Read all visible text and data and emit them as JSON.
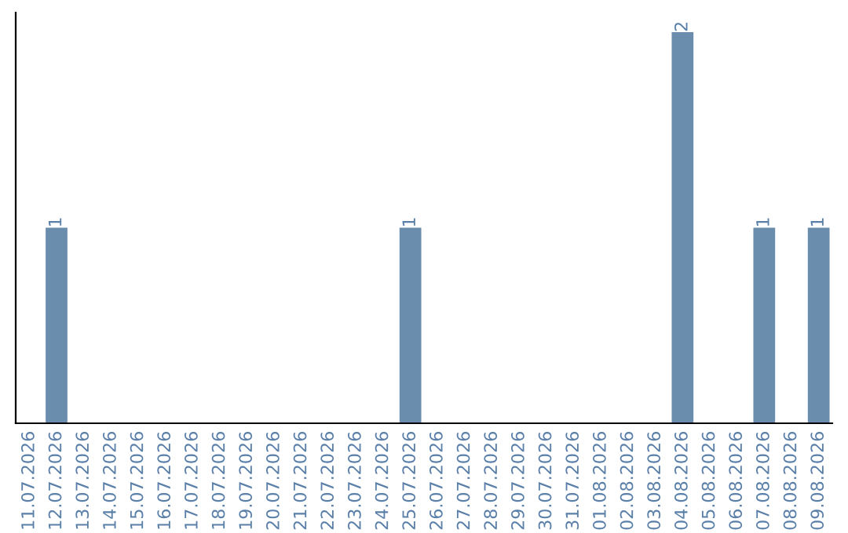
{
  "chart_data": {
    "type": "bar",
    "categories": [
      "11.07.2026",
      "12.07.2026",
      "13.07.2026",
      "14.07.2026",
      "15.07.2026",
      "16.07.2026",
      "17.07.2026",
      "18.07.2026",
      "19.07.2026",
      "20.07.2026",
      "21.07.2026",
      "22.07.2026",
      "23.07.2026",
      "24.07.2026",
      "25.07.2026",
      "26.07.2026",
      "27.07.2026",
      "28.07.2026",
      "29.07.2026",
      "30.07.2026",
      "31.07.2026",
      "01.08.2026",
      "02.08.2026",
      "03.08.2026",
      "04.08.2026",
      "05.08.2026",
      "06.08.2026",
      "07.08.2026",
      "08.08.2026",
      "09.08.2026"
    ],
    "values": [
      0,
      1,
      0,
      0,
      0,
      0,
      0,
      0,
      0,
      0,
      0,
      0,
      0,
      0,
      1,
      0,
      0,
      0,
      0,
      0,
      0,
      0,
      0,
      0,
      2,
      0,
      0,
      1,
      0,
      1
    ],
    "value_labels": [
      null,
      "1",
      null,
      null,
      null,
      null,
      null,
      null,
      null,
      null,
      null,
      null,
      null,
      null,
      "1",
      null,
      null,
      null,
      null,
      null,
      null,
      null,
      null,
      null,
      "2",
      null,
      null,
      "1",
      null,
      "1"
    ],
    "color": "#6a8cad",
    "ylim": [
      0,
      2.1
    ],
    "tick_labels": "x",
    "grid": false,
    "legend": false
  }
}
